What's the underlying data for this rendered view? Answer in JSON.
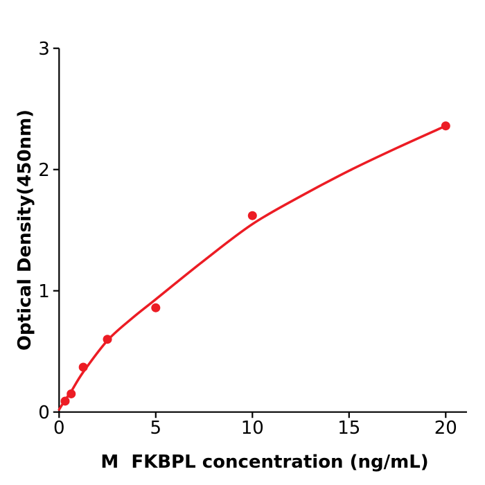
{
  "figure": {
    "kind": "standard-curve-figure",
    "background": "#ffffff"
  },
  "chart_data": {
    "type": "scatter",
    "title": "",
    "xlabel": "M  FKBPL concentration (ng/mL)",
    "ylabel": "Optical Density(450nm)",
    "x_ticks": [
      0,
      5,
      10,
      15,
      20
    ],
    "y_ticks": [
      0,
      1,
      2,
      3
    ],
    "xlim": [
      0,
      21.1
    ],
    "ylim": [
      0,
      3
    ],
    "grid": false,
    "legend_position": "none",
    "axis_color": "#000000",
    "series": [
      {
        "name": "standard-points",
        "type": "scatter",
        "marker": "circle",
        "color": "#ec1c24",
        "points": [
          {
            "x": 0.3125,
            "y": 0.09
          },
          {
            "x": 0.625,
            "y": 0.15
          },
          {
            "x": 1.25,
            "y": 0.37
          },
          {
            "x": 2.5,
            "y": 0.6
          },
          {
            "x": 5,
            "y": 0.86
          },
          {
            "x": 10,
            "y": 1.62
          },
          {
            "x": 20,
            "y": 2.36
          }
        ]
      },
      {
        "name": "fit-curve",
        "type": "line",
        "color": "#ec1c24",
        "points": [
          {
            "x": 0,
            "y": 0.02
          },
          {
            "x": 0.3125,
            "y": 0.1
          },
          {
            "x": 0.625,
            "y": 0.17
          },
          {
            "x": 1.25,
            "y": 0.33
          },
          {
            "x": 2.5,
            "y": 0.59
          },
          {
            "x": 3.75,
            "y": 0.77
          },
          {
            "x": 5,
            "y": 0.93
          },
          {
            "x": 7.5,
            "y": 1.25
          },
          {
            "x": 10,
            "y": 1.55
          },
          {
            "x": 12.5,
            "y": 1.78
          },
          {
            "x": 15,
            "y": 1.99
          },
          {
            "x": 17.5,
            "y": 2.18
          },
          {
            "x": 20,
            "y": 2.36
          }
        ]
      }
    ]
  }
}
